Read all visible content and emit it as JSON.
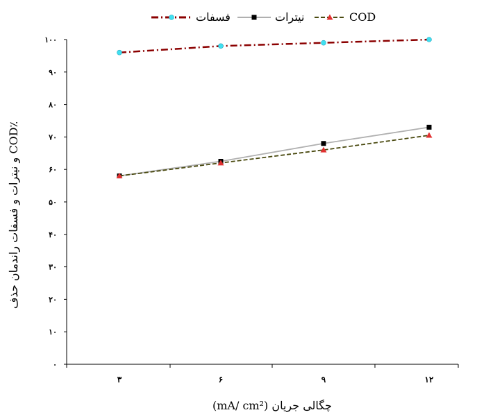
{
  "chart_data": {
    "type": "line",
    "xlabel": "چگالی جریان (mA/ cm²)",
    "ylabel": "٪COD و نیترات و فسفات راندمان حذف",
    "x_categories": [
      "۳",
      "۶",
      "۹",
      "۱۲"
    ],
    "x": [
      3,
      6,
      9,
      12
    ],
    "ylim": [
      0,
      100
    ],
    "y_ticks": [
      0,
      10,
      20,
      30,
      40,
      50,
      60,
      70,
      80,
      90,
      100
    ],
    "y_tick_labels": [
      "۰",
      "۱۰",
      "۲۰",
      "۳۰",
      "۴۰",
      "۵۰",
      "۶۰",
      "۷۰",
      "۸۰",
      "۹۰",
      "۱۰۰"
    ],
    "grid": false,
    "legend_position": "top",
    "series": [
      {
        "name": "فسفات",
        "values": [
          96,
          98,
          99,
          100
        ],
        "color": "#8b0000",
        "marker": "circle",
        "marker_color": "#40e0f0",
        "dash": "10 4 2 4"
      },
      {
        "name": "نیترات",
        "values": [
          58,
          62.5,
          68,
          73
        ],
        "color": "#b0b0b0",
        "marker": "square",
        "marker_color": "#000000",
        "dash": ""
      },
      {
        "name": "COD",
        "values": [
          58,
          62,
          66,
          70.5
        ],
        "color": "#4a4a10",
        "marker": "triangle",
        "marker_color": "#e03030",
        "dash": "6 3"
      }
    ]
  }
}
